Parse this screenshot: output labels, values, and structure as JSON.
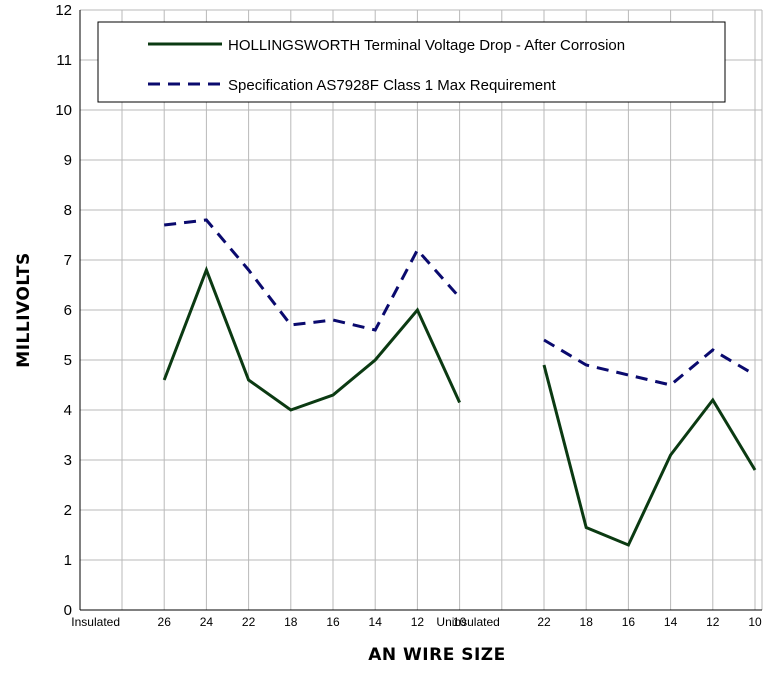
{
  "colors": {
    "series_solid": "#0b3a12",
    "series_dashed": "#0a0a6e",
    "grid": "#b9b9b9",
    "axis": "#000000"
  },
  "chart_data": {
    "type": "line",
    "xlabel": "AN WIRE SIZE",
    "ylabel": "MILLIVOLTS",
    "ylim": [
      0,
      12
    ],
    "yticks": [
      0,
      1,
      2,
      3,
      4,
      5,
      6,
      7,
      8,
      9,
      10,
      11,
      12
    ],
    "grid": true,
    "legend_position": "top",
    "x": [
      "Insulated",
      "26",
      "24",
      "22",
      "18",
      "16",
      "14",
      "12",
      "10",
      "Uninsulated",
      "22",
      "18",
      "16",
      "14",
      "12",
      "10"
    ],
    "series": [
      {
        "name": "HOLLINGSWORTH Terminal Voltage Drop  - After Corrosion",
        "style": "solid",
        "values": [
          null,
          4.6,
          6.8,
          4.6,
          4.0,
          4.3,
          5.0,
          6.0,
          4.15,
          null,
          4.9,
          1.65,
          1.3,
          3.1,
          4.2,
          2.8
        ]
      },
      {
        "name": "Specification AS7928F Class 1 Max Requirement",
        "style": "dashed",
        "values": [
          null,
          7.7,
          7.8,
          6.8,
          5.7,
          5.8,
          5.6,
          7.2,
          6.25,
          null,
          5.4,
          4.9,
          4.7,
          4.5,
          5.2,
          4.7
        ]
      }
    ]
  }
}
